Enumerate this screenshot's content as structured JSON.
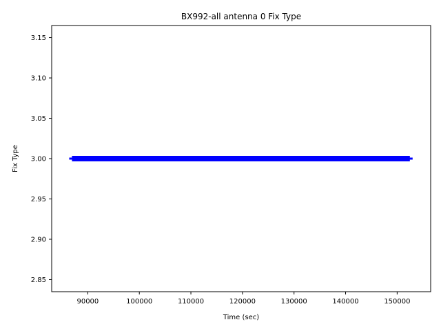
{
  "chart_data": {
    "type": "scatter",
    "title": "BX992-all antenna 0 Fix Type",
    "xlabel": "Time (sec)",
    "ylabel": "Fix Type",
    "xlim": [
      83000,
      156500
    ],
    "ylim": [
      2.835,
      3.165
    ],
    "x_ticks": [
      90000,
      100000,
      110000,
      120000,
      130000,
      140000,
      150000
    ],
    "x_tick_labels": [
      "90000",
      "100000",
      "110000",
      "120000",
      "130000",
      "140000",
      "150000"
    ],
    "y_ticks": [
      2.85,
      2.9,
      2.95,
      3.0,
      3.05,
      3.1,
      3.15
    ],
    "y_tick_labels": [
      "2.85",
      "2.90",
      "2.95",
      "3.00",
      "3.05",
      "3.10",
      "3.15"
    ],
    "grid": false,
    "marker": "+",
    "color": "#0000ff",
    "series": [
      {
        "x_start": 86400,
        "x_end": 153000,
        "y": 3.0
      }
    ]
  }
}
